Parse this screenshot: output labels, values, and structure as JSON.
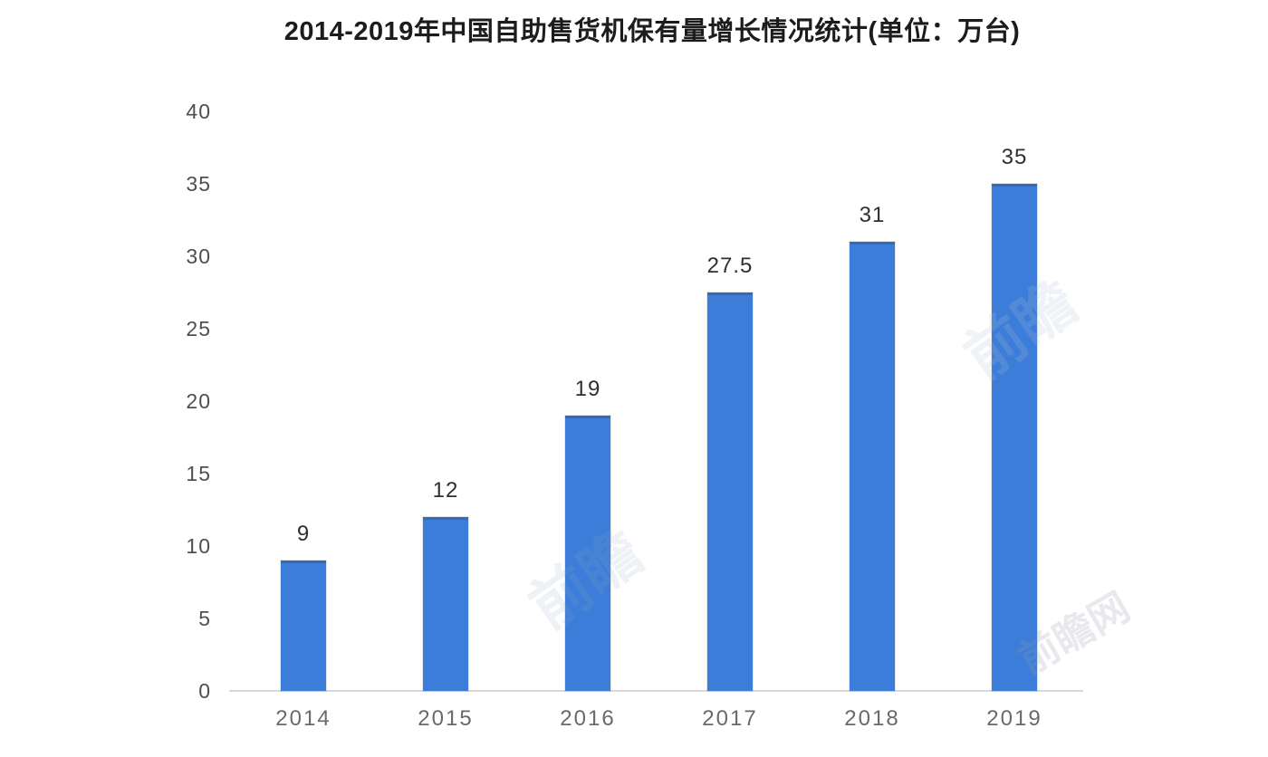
{
  "title": "2014-2019年中国自助售货机保有量增长情况统计(单位：万台)",
  "chart_data": {
    "type": "bar",
    "title": "2014-2019年中国自助售货机保有量增长情况统计(单位：万台)",
    "unit": "万台",
    "categories": [
      "2014",
      "2015",
      "2016",
      "2017",
      "2018",
      "2019"
    ],
    "values": [
      9,
      12,
      19,
      27.5,
      31,
      35
    ],
    "value_labels": [
      "9",
      "12",
      "19",
      "27.5",
      "31",
      "35"
    ],
    "xlabel": "",
    "ylabel": "",
    "ylim": [
      0,
      40
    ],
    "yticks": [
      0,
      5,
      10,
      15,
      20,
      25,
      30,
      35,
      40
    ],
    "grid": false,
    "legend": false,
    "bar_color": "#3b7dd8",
    "axis_line_color": "#d9d9d9",
    "title_color": "#1c1c1c",
    "ytick_color": "#4f4f4f",
    "xtick_color": "#6a6a6a",
    "value_label_color": "#2f2f2f"
  },
  "watermarks": [
    "前瞻",
    "前瞻",
    "前瞻网"
  ]
}
